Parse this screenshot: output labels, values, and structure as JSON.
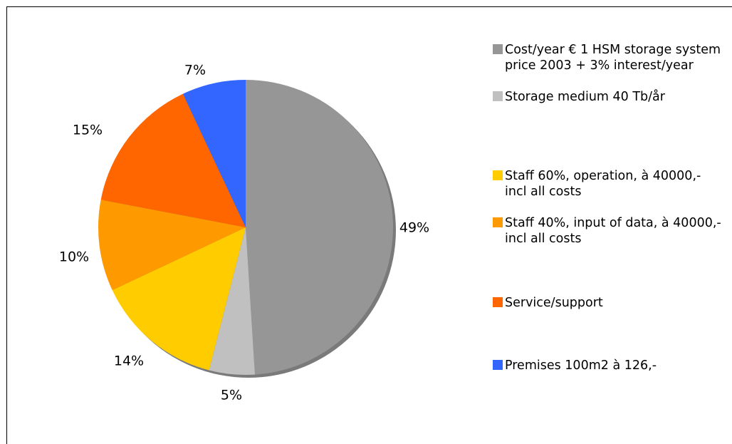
{
  "chart_data": {
    "type": "pie",
    "slices": [
      {
        "label": "Cost/year € 1 HSM storage system  price 2003 + 3% interest/year",
        "value": 49,
        "value_label": "49%",
        "color": "#969696"
      },
      {
        "label": "Storage medium 40 Tb/år",
        "value": 5,
        "value_label": "5%",
        "color": "#c0c0c0"
      },
      {
        "label": "Staff 60%, operation, à 40000,- incl all costs",
        "value": 14,
        "value_label": "14%",
        "color": "#ffcc00"
      },
      {
        "label": "Staff 40%, input of data, à 40000,- incl all costs",
        "value": 10,
        "value_label": "10%",
        "color": "#ff9900"
      },
      {
        "label": "Service/support",
        "value": 15,
        "value_label": "15%",
        "color": "#ff6600"
      },
      {
        "label": "Premises 100m2 à 126,-",
        "value": 7,
        "value_label": "7%",
        "color": "#3366ff"
      }
    ],
    "legend_position": "right",
    "start_angle": "12 o'clock",
    "direction": "clockwise"
  }
}
